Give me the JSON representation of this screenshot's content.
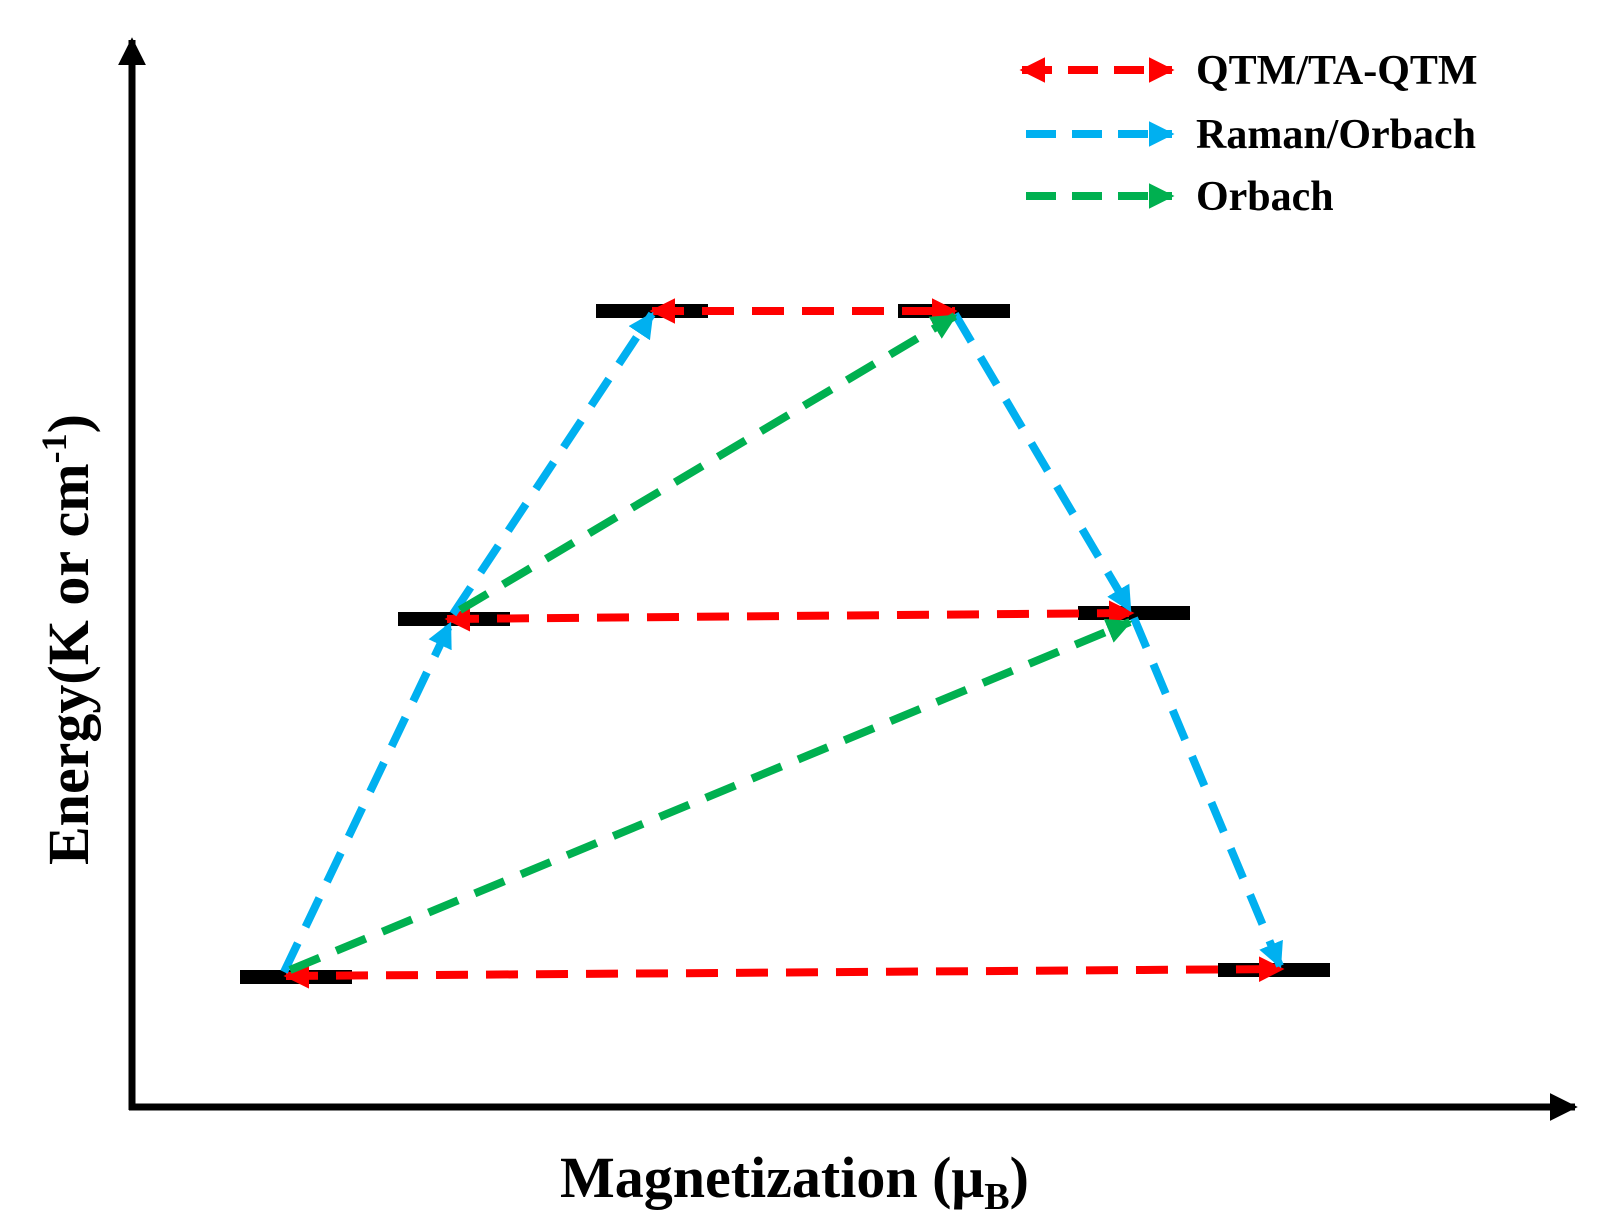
{
  "axes": {
    "x_label": "Magnetization (μ",
    "x_label_sub": "B",
    "x_label_close": ")",
    "y_label": "Energy(K or cm",
    "y_label_sup": "-1",
    "y_label_close": ")"
  },
  "legend": {
    "items": [
      {
        "label": "QTM/TA-QTM",
        "color": "#ff0000",
        "style": "double-arrow"
      },
      {
        "label": "Raman/Orbach",
        "color": "#00b0f0",
        "style": "arrow"
      },
      {
        "label": "Orbach",
        "color": "#00b050",
        "style": "arrow"
      }
    ]
  },
  "levels": [
    {
      "name": "ground-level-left"
    },
    {
      "name": "ground-level-right"
    },
    {
      "name": "middle-level-left"
    },
    {
      "name": "middle-level-right"
    },
    {
      "name": "top-level-left"
    },
    {
      "name": "top-level-right"
    }
  ],
  "colors": {
    "qtm": "#ff0000",
    "raman": "#00b0f0",
    "orbach": "#00b050",
    "level": "#000000",
    "axis": "#000000"
  }
}
